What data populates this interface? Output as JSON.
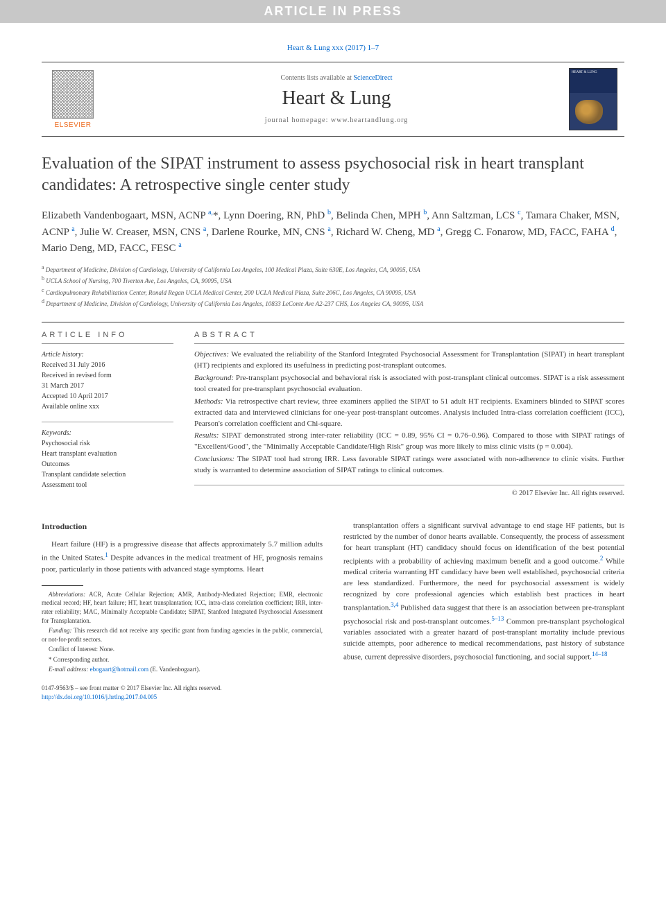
{
  "banner": "ARTICLE IN PRESS",
  "citation": "Heart & Lung xxx (2017) 1–7",
  "header": {
    "publisher": "ELSEVIER",
    "contents_prefix": "Contents lists available at ",
    "contents_link": "ScienceDirect",
    "journal": "Heart & Lung",
    "homepage_prefix": "journal homepage: ",
    "homepage": "www.heartandlung.org",
    "cover_label": "HEART & LUNG"
  },
  "title": "Evaluation of the SIPAT instrument to assess psychosocial risk in heart transplant candidates: A retrospective single center study",
  "authors_html": "Elizabeth Vandenbogaart, MSN, ACNP <sup>a,</sup>*, Lynn Doering, RN, PhD <sup>b</sup>, Belinda Chen, MPH <sup>b</sup>, Ann Saltzman, LCS <sup>c</sup>, Tamara Chaker, MSN, ACNP <sup>a</sup>, Julie W. Creaser, MSN, CNS <sup>a</sup>, Darlene Rourke, MN, CNS <sup>a</sup>, Richard W. Cheng, MD <sup>a</sup>, Gregg C. Fonarow, MD, FACC, FAHA <sup>d</sup>, Mario Deng, MD, FACC, FESC <sup>a</sup>",
  "affiliations": [
    {
      "sup": "a",
      "text": "Department of Medicine, Division of Cardiology, University of California Los Angeles, 100 Medical Plaza, Suite 630E, Los Angeles, CA, 90095, USA"
    },
    {
      "sup": "b",
      "text": "UCLA School of Nursing, 700 Tiverton Ave, Los Angeles, CA, 90095, USA"
    },
    {
      "sup": "c",
      "text": "Cardiopulmonary Rehabilitation Center, Ronald Regan UCLA Medical Center, 200 UCLA Medical Plaza, Suite 206C, Los Angeles, CA 90095, USA"
    },
    {
      "sup": "d",
      "text": "Department of Medicine, Division of Cardiology, University of California Los Angeles, 10833 LeConte Ave A2-237 CHS, Los Angeles CA, 90095, USA"
    }
  ],
  "article_info": {
    "heading": "ARTICLE INFO",
    "history_label": "Article history:",
    "history": [
      "Received 31 July 2016",
      "Received in revised form",
      "31 March 2017",
      "Accepted 10 April 2017",
      "Available online xxx"
    ],
    "keywords_label": "Keywords:",
    "keywords": [
      "Psychosocial risk",
      "Heart transplant evaluation",
      "Outcomes",
      "Transplant candidate selection",
      "Assessment tool"
    ]
  },
  "abstract": {
    "heading": "ABSTRACT",
    "sections": [
      {
        "label": "Objectives:",
        "text": "We evaluated the reliability of the Stanford Integrated Psychosocial Assessment for Transplantation (SIPAT) in heart transplant (HT) recipients and explored its usefulness in predicting post-transplant outcomes."
      },
      {
        "label": "Background:",
        "text": "Pre-transplant psychosocial and behavioral risk is associated with post-transplant clinical outcomes. SIPAT is a risk assessment tool created for pre-transplant psychosocial evaluation."
      },
      {
        "label": "Methods:",
        "text": "Via retrospective chart review, three examiners applied the SIPAT to 51 adult HT recipients. Examiners blinded to SIPAT scores extracted data and interviewed clinicians for one-year post-transplant outcomes. Analysis included Intra-class correlation coefficient (ICC), Pearson's correlation coefficient and Chi-square."
      },
      {
        "label": "Results:",
        "text": "SIPAT demonstrated strong inter-rater reliability (ICC = 0.89, 95% CI = 0.76–0.96). Compared to those with SIPAT ratings of \"Excellent/Good\", the \"Minimally Acceptable Candidate/High Risk\" group was more likely to miss clinic visits (p = 0.004)."
      },
      {
        "label": "Conclusions:",
        "text": "The SIPAT tool had strong IRR. Less favorable SIPAT ratings were associated with non-adherence to clinic visits. Further study is warranted to determine association of SIPAT ratings to clinical outcomes."
      }
    ],
    "copyright": "© 2017 Elsevier Inc. All rights reserved."
  },
  "intro": {
    "heading": "Introduction",
    "col1": "Heart failure (HF) is a progressive disease that affects approximately 5.7 million adults in the United States.<sup>1</sup> Despite advances in the medical treatment of HF, prognosis remains poor, particularly in those patients with advanced stage symptoms. Heart",
    "col2": "transplantation offers a significant survival advantage to end stage HF patients, but is restricted by the number of donor hearts available. Consequently, the process of assessment for heart transplant (HT) candidacy should focus on identification of the best potential recipients with a probability of achieving maximum benefit and a good outcome.<sup>2</sup> While medical criteria warranting HT candidacy have been well established, psychosocial criteria are less standardized. Furthermore, the need for psychosocial assessment is widely recognized by core professional agencies which establish best practices in heart transplantation.<sup>3,4</sup> Published data suggest that there is an association between pre-transplant psychosocial risk and post-transplant outcomes.<sup>5–13</sup> Common pre-transplant psychological variables associated with a greater hazard of post-transplant mortality include previous suicide attempts, poor adherence to medical recommendations, past history of substance abuse, current depressive disorders, psychosocial functioning, and social support.<sup>14–18</sup>"
  },
  "footnotes": {
    "abbrev_label": "Abbreviations:",
    "abbrev": "ACR, Acute Cellular Rejection; AMR, Antibody-Mediated Rejection; EMR, electronic medical record; HF, heart failure; HT, heart transplantation; ICC, intra-class correlation coefficient; IRR, inter-rater reliability; MAC, Minimally Acceptable Candidate; SIPAT, Stanford Integrated Psychosocial Assessment for Transplantation.",
    "funding_label": "Funding:",
    "funding": "This research did not receive any specific grant from funding agencies in the public, commercial, or not-for-profit sectors.",
    "coi": "Conflict of Interest: None.",
    "corresponding": "* Corresponding author.",
    "email_label": "E-mail address:",
    "email": "ebogaart@hotmail.com",
    "email_attrib": "(E. Vandenbogaart)."
  },
  "bottom": {
    "issn": "0147-9563/$ – see front matter © 2017 Elsevier Inc. All rights reserved.",
    "doi": "http://dx.doi.org/10.1016/j.hrtlng.2017.04.005"
  },
  "colors": {
    "link": "#0066cc",
    "accent_orange": "#ed6b1f",
    "banner_bg": "#c8c8c8",
    "text": "#3a3a3a"
  }
}
